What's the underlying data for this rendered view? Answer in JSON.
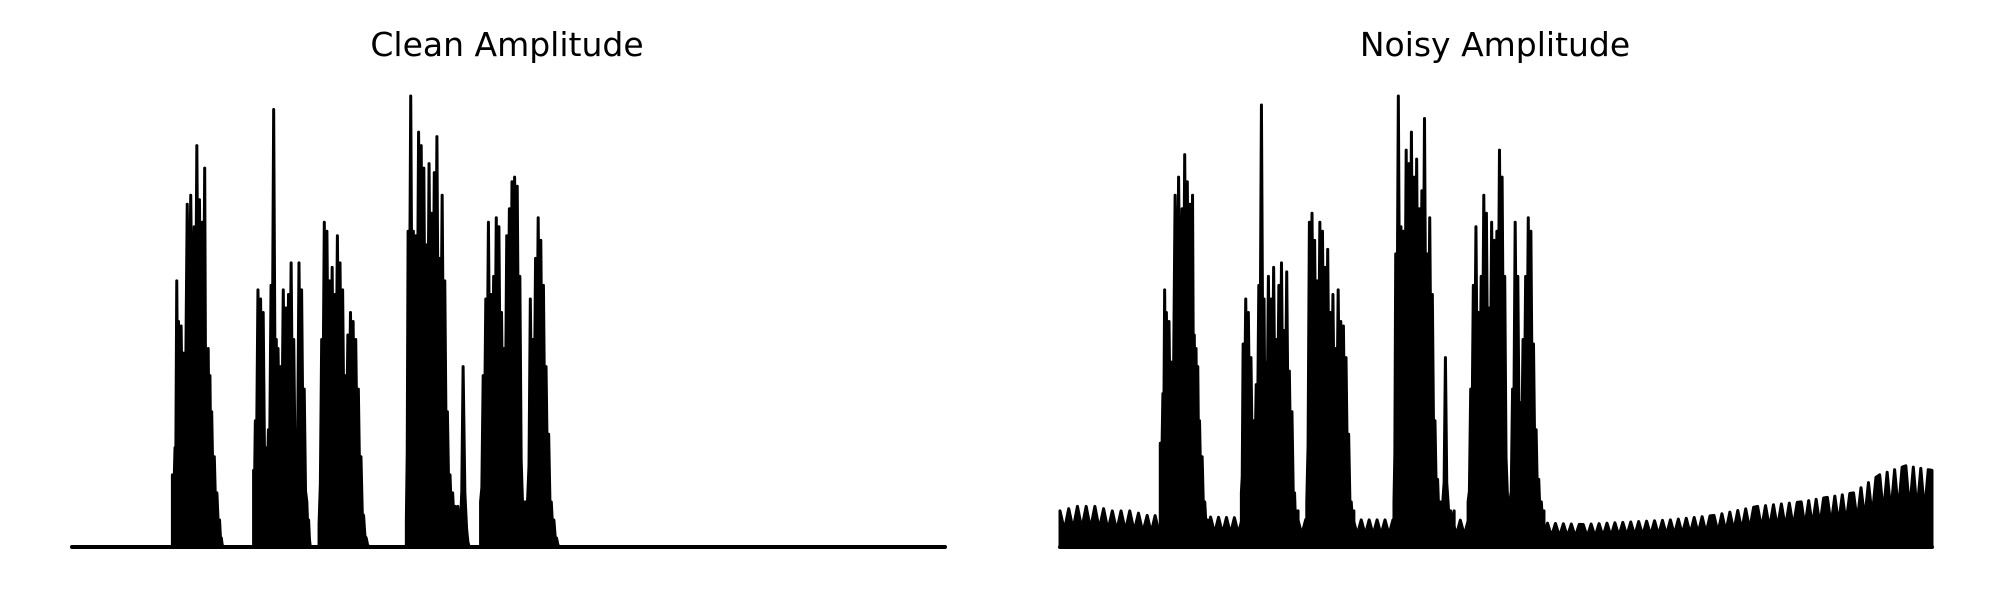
{
  "chart_data": [
    {
      "type": "area",
      "title": "Clean Amplitude",
      "xlabel": "",
      "ylabel": "",
      "axes_visible": false,
      "grid": false,
      "color": "#000000",
      "ylim": [
        0,
        1.0
      ],
      "segments": [
        {
          "x": [
            0.115,
            0.118,
            0.12,
            0.122,
            0.125,
            0.128,
            0.132,
            0.136,
            0.14,
            0.143,
            0.146,
            0.149,
            0.152,
            0.154,
            0.156,
            0.158,
            0.16,
            0.163,
            0.166,
            0.169,
            0.171,
            0.173,
            0.176,
            0.179,
            0.182
          ],
          "y": [
            0.16,
            0.22,
            0.59,
            0.5,
            0.49,
            0.43,
            0.76,
            0.78,
            0.71,
            0.89,
            0.77,
            0.72,
            0.84,
            0.42,
            0.44,
            0.38,
            0.3,
            0.2,
            0.12,
            0.06,
            0.02,
            0.0,
            0.0,
            0.0,
            0.0
          ]
        },
        {
          "x": [
            0.208,
            0.21,
            0.213,
            0.216,
            0.219,
            0.222,
            0.225,
            0.228,
            0.231,
            0.234,
            0.236,
            0.239,
            0.242,
            0.245,
            0.248,
            0.251,
            0.254,
            0.257,
            0.26,
            0.263,
            0.266,
            0.269,
            0.271,
            0.273
          ],
          "y": [
            0.17,
            0.28,
            0.57,
            0.55,
            0.52,
            0.22,
            0.26,
            0.58,
            0.97,
            0.46,
            0.44,
            0.4,
            0.57,
            0.53,
            0.56,
            0.63,
            0.46,
            0.25,
            0.63,
            0.57,
            0.35,
            0.1,
            0.06,
            0.0
          ]
        },
        {
          "x": [
            0.283,
            0.286,
            0.289,
            0.292,
            0.295,
            0.298,
            0.301,
            0.304,
            0.307,
            0.31,
            0.313,
            0.316,
            0.319,
            0.322,
            0.325,
            0.328,
            0.331,
            0.334,
            0.337,
            0.34,
            0.343
          ],
          "y": [
            0.05,
            0.46,
            0.72,
            0.7,
            0.59,
            0.62,
            0.56,
            0.69,
            0.63,
            0.57,
            0.38,
            0.47,
            0.52,
            0.5,
            0.46,
            0.35,
            0.2,
            0.07,
            0.02,
            0.0,
            0.0
          ]
        },
        {
          "x": [
            0.383,
            0.385,
            0.388,
            0.391,
            0.394,
            0.397,
            0.4,
            0.403,
            0.406,
            0.409,
            0.412,
            0.415,
            0.418,
            0.421,
            0.424,
            0.427,
            0.43,
            0.433,
            0.436,
            0.439,
            0.442,
            0.445,
            0.448,
            0.452,
            0.455,
            0.458,
            0.461,
            0.464
          ],
          "y": [
            0.06,
            0.7,
            1.0,
            0.7,
            0.69,
            0.92,
            0.89,
            0.84,
            0.67,
            0.85,
            0.74,
            0.83,
            0.91,
            0.64,
            0.78,
            0.59,
            0.3,
            0.16,
            0.12,
            0.09,
            0.09,
            0.05,
            0.4,
            0.04,
            0.0,
            0.0,
            0.0,
            0.0
          ]
        },
        {
          "x": [
            0.468,
            0.471,
            0.474,
            0.477,
            0.48,
            0.483,
            0.486,
            0.489,
            0.492,
            0.495,
            0.498,
            0.501,
            0.504,
            0.507,
            0.51,
            0.513,
            0.516,
            0.519,
            0.522,
            0.525,
            0.528,
            0.531,
            0.534,
            0.537,
            0.54,
            0.543,
            0.546,
            0.549,
            0.552,
            0.555,
            0.558,
            0.561,
            0.564
          ],
          "y": [
            0.1,
            0.38,
            0.55,
            0.72,
            0.56,
            0.6,
            0.73,
            0.71,
            0.52,
            0.44,
            0.69,
            0.75,
            0.81,
            0.82,
            0.8,
            0.6,
            0.1,
            0.1,
            0.11,
            0.55,
            0.46,
            0.64,
            0.73,
            0.68,
            0.58,
            0.4,
            0.25,
            0.1,
            0.06,
            0.02,
            0.0,
            0.0,
            0.0
          ]
        }
      ]
    },
    {
      "type": "area",
      "title": "Noisy Amplitude",
      "xlabel": "",
      "ylabel": "",
      "axes_visible": false,
      "grid": false,
      "color": "#000000",
      "ylim": [
        0,
        1.0
      ],
      "noise_floor": {
        "x": [
          0.0,
          0.02,
          0.04,
          0.06,
          0.08,
          0.1,
          0.3,
          0.45,
          0.6,
          0.7,
          0.75,
          0.8,
          0.85,
          0.88,
          0.91,
          0.94,
          0.97,
          1.0
        ],
        "y": [
          0.08,
          0.09,
          0.09,
          0.08,
          0.08,
          0.07,
          0.06,
          0.06,
          0.05,
          0.06,
          0.07,
          0.09,
          0.1,
          0.11,
          0.12,
          0.16,
          0.18,
          0.17
        ]
      },
      "segments": [
        {
          "x": [
            0.115,
            0.118,
            0.12,
            0.122,
            0.125,
            0.128,
            0.132,
            0.136,
            0.14,
            0.143,
            0.146,
            0.149,
            0.152,
            0.154,
            0.156,
            0.158,
            0.16,
            0.163,
            0.166,
            0.169,
            0.171
          ],
          "y": [
            0.23,
            0.34,
            0.57,
            0.52,
            0.5,
            0.41,
            0.78,
            0.82,
            0.75,
            0.87,
            0.81,
            0.76,
            0.78,
            0.47,
            0.44,
            0.4,
            0.28,
            0.2,
            0.1,
            0.06,
            0.0
          ]
        },
        {
          "x": [
            0.208,
            0.21,
            0.213,
            0.216,
            0.219,
            0.222,
            0.225,
            0.228,
            0.231,
            0.234,
            0.236,
            0.239,
            0.242,
            0.245,
            0.248,
            0.251,
            0.254,
            0.257,
            0.26,
            0.263,
            0.266,
            0.269,
            0.271,
            0.273
          ],
          "y": [
            0.12,
            0.45,
            0.55,
            0.52,
            0.42,
            0.28,
            0.36,
            0.58,
            0.98,
            0.55,
            0.41,
            0.6,
            0.55,
            0.62,
            0.46,
            0.58,
            0.63,
            0.48,
            0.61,
            0.39,
            0.3,
            0.12,
            0.08,
            0.08
          ]
        },
        {
          "x": [
            0.283,
            0.286,
            0.289,
            0.292,
            0.295,
            0.298,
            0.301,
            0.304,
            0.307,
            0.31,
            0.313,
            0.316,
            0.319,
            0.322,
            0.325,
            0.328,
            0.331,
            0.334,
            0.337
          ],
          "y": [
            0.1,
            0.72,
            0.74,
            0.68,
            0.59,
            0.72,
            0.7,
            0.62,
            0.66,
            0.52,
            0.56,
            0.44,
            0.57,
            0.5,
            0.49,
            0.42,
            0.25,
            0.1,
            0.08
          ]
        },
        {
          "x": [
            0.383,
            0.385,
            0.388,
            0.391,
            0.394,
            0.397,
            0.4,
            0.403,
            0.406,
            0.409,
            0.412,
            0.415,
            0.418,
            0.421,
            0.424,
            0.427,
            0.43,
            0.433,
            0.436,
            0.439,
            0.442,
            0.445,
            0.448,
            0.452
          ],
          "y": [
            0.1,
            0.65,
            1.0,
            0.71,
            0.7,
            0.88,
            0.85,
            0.92,
            0.82,
            0.86,
            0.75,
            0.79,
            0.95,
            0.65,
            0.73,
            0.56,
            0.28,
            0.15,
            0.1,
            0.1,
            0.42,
            0.1,
            0.08,
            0.08
          ]
        },
        {
          "x": [
            0.468,
            0.471,
            0.474,
            0.477,
            0.48,
            0.483,
            0.486,
            0.489,
            0.492,
            0.495,
            0.498,
            0.501,
            0.504,
            0.507,
            0.51,
            0.513,
            0.516,
            0.519,
            0.522,
            0.525,
            0.528,
            0.531,
            0.534,
            0.537,
            0.54,
            0.543,
            0.546,
            0.549,
            0.552,
            0.555
          ],
          "y": [
            0.1,
            0.35,
            0.58,
            0.71,
            0.52,
            0.6,
            0.78,
            0.74,
            0.53,
            0.72,
            0.68,
            0.7,
            0.88,
            0.82,
            0.6,
            0.12,
            0.1,
            0.35,
            0.72,
            0.6,
            0.32,
            0.46,
            0.6,
            0.73,
            0.7,
            0.45,
            0.26,
            0.15,
            0.1,
            0.08
          ]
        }
      ]
    }
  ]
}
